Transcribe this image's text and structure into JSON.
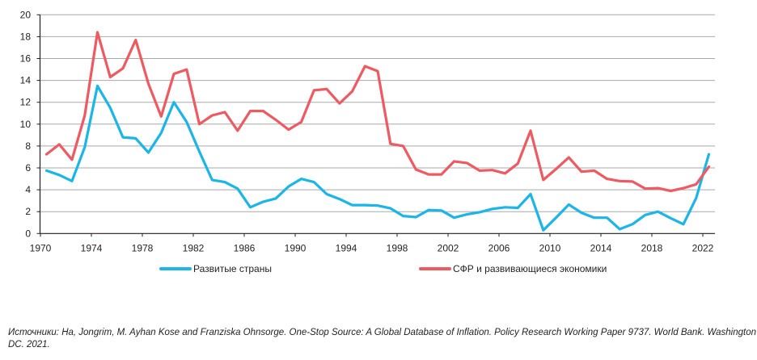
{
  "chart_data": {
    "type": "line",
    "title": "",
    "xlabel": "",
    "ylabel": "",
    "ylim": [
      0,
      20
    ],
    "yticks": [
      0,
      2,
      4,
      6,
      8,
      10,
      12,
      14,
      16,
      18,
      20
    ],
    "xlim": [
      1970,
      2022
    ],
    "xticks": [
      1970,
      1974,
      1978,
      1982,
      1986,
      1990,
      1994,
      1998,
      2002,
      2006,
      2010,
      2014,
      2018,
      2022
    ],
    "grid": "horizontal",
    "legend_position": "bottom",
    "x": [
      1970,
      1971,
      1972,
      1973,
      1974,
      1975,
      1976,
      1977,
      1978,
      1979,
      1980,
      1981,
      1982,
      1983,
      1984,
      1985,
      1986,
      1987,
      1988,
      1989,
      1990,
      1991,
      1992,
      1993,
      1994,
      1995,
      1996,
      1997,
      1998,
      1999,
      2000,
      2001,
      2002,
      2003,
      2004,
      2005,
      2006,
      2007,
      2008,
      2009,
      2010,
      2011,
      2012,
      2013,
      2014,
      2015,
      2016,
      2017,
      2018,
      2019,
      2020,
      2021,
      2022
    ],
    "series": [
      {
        "name": "Развитые страны",
        "color": "#1cb5e8",
        "values": [
          5.75,
          5.35,
          4.8,
          7.9,
          13.5,
          11.5,
          8.8,
          8.7,
          7.4,
          9.2,
          12.0,
          10.2,
          7.5,
          4.9,
          4.7,
          4.1,
          2.4,
          2.9,
          3.2,
          4.3,
          5.0,
          4.7,
          3.6,
          3.15,
          2.6,
          2.6,
          2.55,
          2.3,
          1.6,
          1.5,
          2.15,
          2.1,
          1.45,
          1.75,
          1.95,
          2.25,
          2.4,
          2.35,
          3.6,
          0.3,
          1.45,
          2.65,
          1.9,
          1.45,
          1.45,
          0.4,
          0.85,
          1.7,
          2.0,
          1.4,
          0.85,
          3.25,
          7.25
        ]
      },
      {
        "name": "СФР и развивающиеся экономики",
        "color": "#ee5a62",
        "values": [
          7.25,
          8.15,
          6.75,
          10.8,
          18.4,
          14.3,
          15.1,
          17.7,
          13.7,
          10.7,
          14.6,
          15.0,
          10.0,
          10.8,
          11.1,
          9.4,
          11.2,
          11.2,
          10.4,
          9.5,
          10.2,
          13.1,
          13.2,
          11.9,
          13.0,
          15.3,
          14.85,
          8.2,
          8.0,
          5.85,
          5.4,
          5.4,
          6.6,
          6.45,
          5.75,
          5.8,
          5.5,
          6.4,
          9.4,
          4.9,
          5.9,
          6.95,
          5.65,
          5.75,
          5.0,
          4.8,
          4.75,
          4.1,
          4.15,
          3.9,
          4.15,
          4.5,
          6.1
        ]
      }
    ]
  },
  "legend": {
    "developed_label": "Развитые страны",
    "emerging_label": "СФР и развивающиеся экономики"
  },
  "source_note": "Источники: Ha, Jongrim, M. Ayhan Kose and Franziska Ohnsorge. One-Stop Source: A Global Database of Inflation. Policy Research Working Paper 9737. World Bank. Washington DC. 2021."
}
